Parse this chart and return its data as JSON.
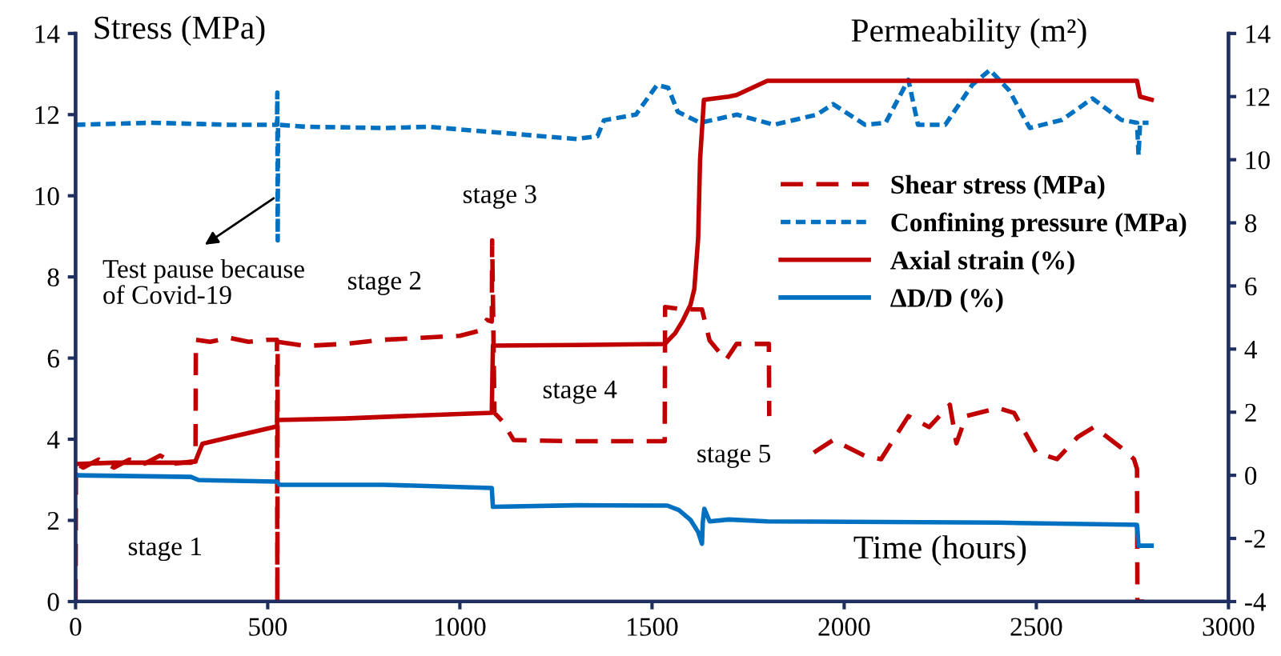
{
  "chart_data": {
    "type": "line",
    "xlabel": "Time (hours)",
    "ylabel": "Stress (MPa)",
    "y2label": "Permeability (m²)",
    "xlim": [
      0,
      3000
    ],
    "xticks": [
      0,
      500,
      1000,
      1500,
      2000,
      2500,
      3000
    ],
    "ylim": [
      0,
      14
    ],
    "yticks": [
      0,
      2,
      4,
      6,
      8,
      10,
      12,
      14
    ],
    "y2lim": [
      -4,
      14
    ],
    "y2ticks": [
      -4,
      -2,
      0,
      2,
      4,
      6,
      8,
      10,
      12,
      14
    ],
    "grid": false,
    "legend": "right",
    "marker": "none",
    "annotations": [
      {
        "text": "Test pause because\nof Covid-19",
        "x": 525,
        "y": 10.0
      },
      "stage 1",
      "stage 2",
      "stage 3",
      "stage 4",
      "stage 5"
    ],
    "series": [
      {
        "name": "Shear stress (MPa)",
        "color": "#c00000",
        "line_style": "dashed",
        "x": [
          0,
          1,
          20,
          60,
          100,
          140,
          180,
          220,
          260,
          300,
          312,
          313,
          350,
          400,
          450,
          500,
          524,
          525,
          526,
          600,
          700,
          800,
          900,
          1000,
          1050,
          1070,
          1083,
          1084,
          1090,
          1110,
          1140,
          1300,
          1533,
          1534,
          1580,
          1630,
          1650,
          1692,
          1720,
          1804,
          1805,
          1850,
          1921,
          1971,
          2054,
          2096,
          2167,
          2221,
          2275,
          2292,
          2317,
          2400,
          2442,
          2500,
          2554,
          2608,
          2650,
          2721,
          2754,
          2762,
          2763,
          2780
        ],
        "values": [
          0,
          3.4,
          3.3,
          3.5,
          3.3,
          3.5,
          3.4,
          3.6,
          3.4,
          3.45,
          3.45,
          6.45,
          6.4,
          6.5,
          6.4,
          6.45,
          6.45,
          0,
          6.4,
          6.3,
          6.35,
          6.45,
          6.5,
          6.55,
          6.67,
          6.94,
          6.9,
          8.9,
          4.65,
          4.45,
          3.98,
          3.95,
          3.95,
          7.26,
          7.2,
          7.2,
          6.43,
          5.95,
          6.35,
          6.35,
          4.57,
          null,
          3.67,
          3.98,
          3.59,
          3.51,
          4.57,
          4.3,
          4.85,
          3.9,
          4.57,
          4.77,
          4.65,
          3.67,
          3.51,
          4.06,
          4.3,
          3.79,
          3.51,
          3.27,
          0,
          0
        ]
      },
      {
        "name": "Confining pressure (MPa)",
        "color": "#0070c0",
        "line_style": "dotted",
        "x": [
          0,
          200,
          400,
          524,
          525,
          526,
          527,
          600,
          804,
          917,
          1108,
          1304,
          1358,
          1375,
          1458,
          1513,
          1542,
          1567,
          1625,
          1721,
          1817,
          1929,
          1971,
          2054,
          2108,
          2167,
          2192,
          2263,
          2333,
          2379,
          2429,
          2483,
          2567,
          2646,
          2721,
          2762,
          2766,
          2770,
          2792
        ],
        "values": [
          11.75,
          11.8,
          11.75,
          11.75,
          12.54,
          8.9,
          11.75,
          11.7,
          11.67,
          11.7,
          11.55,
          11.4,
          11.47,
          11.86,
          12.0,
          12.73,
          12.66,
          12.07,
          11.8,
          12.0,
          11.75,
          12.0,
          12.26,
          11.75,
          11.8,
          12.86,
          11.75,
          11.75,
          12.73,
          13.1,
          12.6,
          11.67,
          11.87,
          12.4,
          11.87,
          11.8,
          11.0,
          11.8,
          11.8
        ]
      },
      {
        "name": "Axial strain (%)",
        "color": "#c00000",
        "line_style": "solid",
        "axis": "y2",
        "x": [
          0,
          100,
          200,
          300,
          312,
          330,
          400,
          524,
          525,
          700,
          900,
          1083,
          1086,
          1300,
          1533,
          1560,
          1580,
          1600,
          1610,
          1620,
          1625,
          1635,
          1700,
          1720,
          1800,
          2200,
          2762,
          2770,
          2800
        ],
        "values": [
          0.36,
          0.4,
          0.4,
          0.4,
          0.45,
          1.0,
          1.2,
          1.55,
          1.75,
          1.8,
          1.9,
          1.98,
          4.11,
          4.13,
          4.16,
          4.5,
          4.9,
          5.4,
          5.9,
          7.5,
          10.0,
          11.9,
          12.0,
          12.05,
          12.5,
          12.5,
          12.5,
          12.0,
          11.9
        ]
      },
      {
        "name": "ΔD/D (%)",
        "color": "#0070c0",
        "line_style": "solid",
        "axis": "y2",
        "x": [
          0,
          300,
          320,
          524,
          530,
          800,
          1083,
          1086,
          1300,
          1540,
          1570,
          1600,
          1620,
          1630,
          1632,
          1636,
          1650,
          1700,
          1800,
          2400,
          2762,
          2766,
          2800
        ],
        "values": [
          0.0,
          -0.05,
          -0.15,
          -0.2,
          -0.3,
          -0.3,
          -0.4,
          -1.0,
          -0.95,
          -0.96,
          -1.1,
          -1.41,
          -1.8,
          -2.17,
          -1.5,
          -1.06,
          -1.46,
          -1.4,
          -1.46,
          -1.5,
          -1.57,
          -2.23,
          -2.23
        ]
      }
    ]
  }
}
